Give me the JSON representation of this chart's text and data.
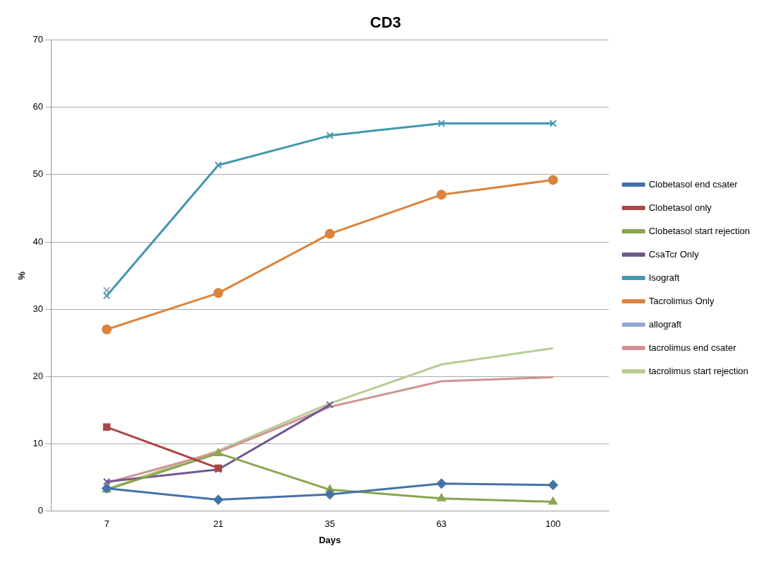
{
  "chart_data": {
    "type": "line",
    "title": "CD3",
    "xlabel": "Days",
    "ylabel": "%",
    "categories": [
      "7",
      "21",
      "35",
      "63",
      "100"
    ],
    "ylim": [
      0,
      70
    ],
    "yticks": [
      0,
      10,
      20,
      30,
      40,
      50,
      60,
      70
    ],
    "grid": "y",
    "legend": "right",
    "line_style": "solid",
    "series": [
      {
        "name": "Clobetasol end csater",
        "color": "#4572a7",
        "marker": "diamond",
        "values": [
          3.4,
          1.7,
          2.5,
          4.1,
          3.9
        ]
      },
      {
        "name": "Clobetasol only",
        "color": "#aa4643",
        "marker": "square",
        "values": [
          12.5,
          6.4,
          null,
          null,
          null
        ]
      },
      {
        "name": "Clobetasol start rejection",
        "color": "#89a54e",
        "marker": "triangle",
        "values": [
          3.2,
          8.6,
          3.2,
          1.9,
          1.4
        ]
      },
      {
        "name": "CsaTcr Only",
        "color": "#71588f",
        "marker": "cross",
        "values": [
          4.4,
          6.2,
          15.8,
          null,
          null
        ]
      },
      {
        "name": "Isograft",
        "color": "#4198af",
        "marker": "cross",
        "values": [
          32,
          51.4,
          55.8,
          57.6,
          57.6
        ]
      },
      {
        "name": "Tacrolimus Only",
        "color": "#db843d",
        "marker": "circle",
        "values": [
          27,
          32.4,
          41.2,
          47,
          49.2
        ]
      },
      {
        "name": "allograft",
        "color": "#93a9cf",
        "marker": "cross",
        "values": [
          32.8,
          null,
          null,
          null,
          null
        ]
      },
      {
        "name": "tacrolimus end csater",
        "color": "#d19392",
        "marker": "none",
        "values": [
          4.2,
          8.8,
          15.5,
          19.3,
          19.9
        ]
      },
      {
        "name": "tacrolimus start rejection",
        "color": "#b9cd96",
        "marker": "none",
        "values": [
          3.3,
          9.0,
          16.0,
          21.8,
          24.2
        ]
      }
    ]
  }
}
